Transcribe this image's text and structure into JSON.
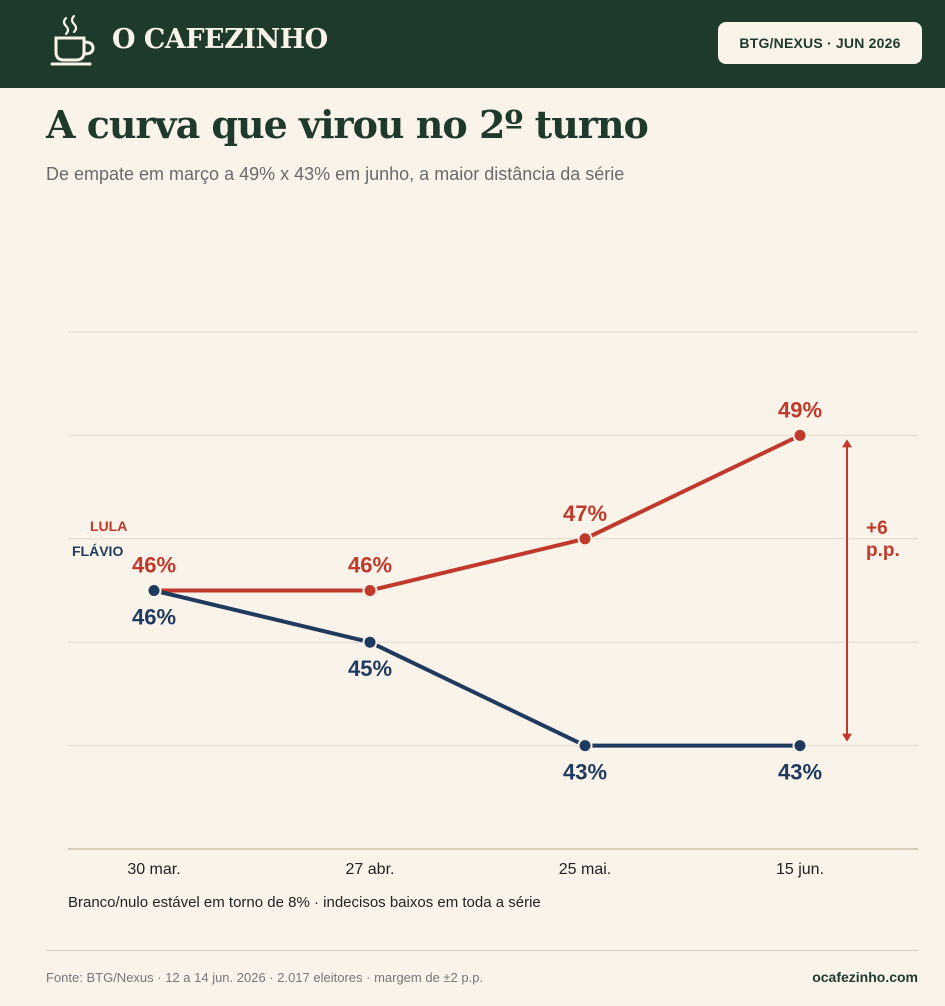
{
  "header": {
    "brand": "O CAFEZINHO",
    "badge": "BTG/NEXUS · JUN 2026"
  },
  "title": "A curva que virou no 2º turno",
  "subtitle": "De empate em março a 49% x 43% em junho, a maior distância da série",
  "chart_data": {
    "type": "line",
    "categories": [
      "30 mar.",
      "27 abr.",
      "25 mai.",
      "15 jun."
    ],
    "series": [
      {
        "name": "LULA",
        "values": [
          46,
          46,
          47,
          49
        ],
        "labels": [
          "46%",
          "46%",
          "47%",
          "49%"
        ],
        "color": "#c0392b"
      },
      {
        "name": "FLÁVIO",
        "values": [
          46,
          45,
          43,
          43
        ],
        "labels": [
          "46%",
          "45%",
          "43%",
          "43%"
        ],
        "color": "#1e3a5f"
      }
    ],
    "ylim": [
      41,
      51
    ],
    "grid": true,
    "gap_annotation": "+6\np.p.",
    "xlabel": "",
    "ylabel": ""
  },
  "note": "Branco/nulo estável em torno de 8% · indecisos baixos em toda a série",
  "footer": {
    "source": "Fonte: BTG/Nexus · 12 a 14 jun. 2026 · 2.017 eleitores · margem de ±2 p.p.",
    "site": "ocafezinho.com"
  },
  "colors": {
    "header_bg": "#1e3a2a",
    "background": "#f9f3ea",
    "lula": "#c0392b",
    "flavio": "#1e3a5f"
  },
  "icons": [
    "coffee-cup-icon"
  ]
}
